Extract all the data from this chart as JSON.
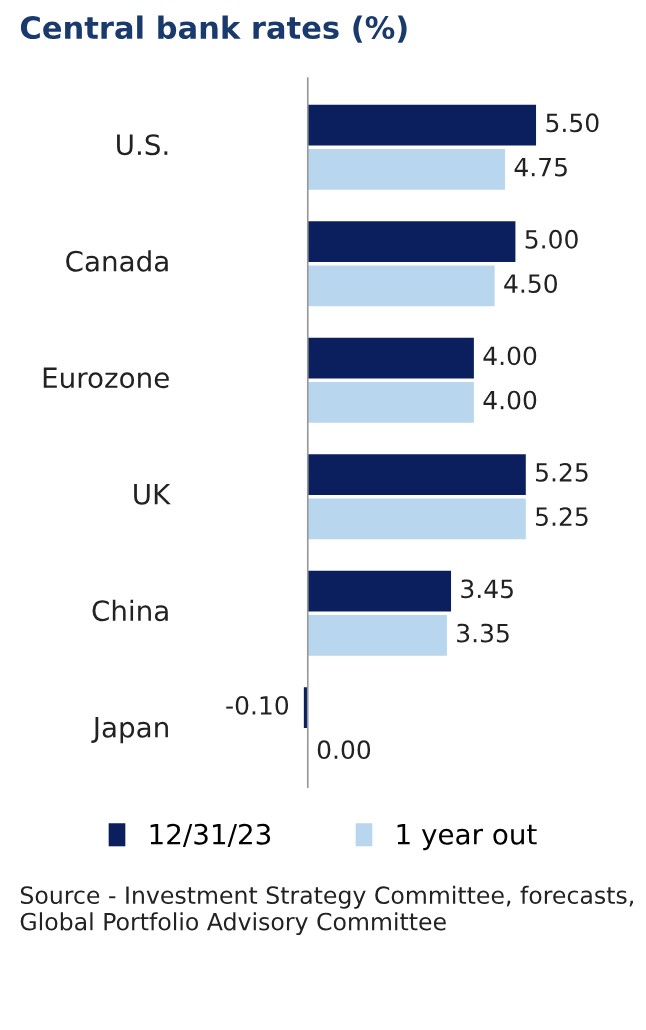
{
  "chart_data": {
    "type": "bar",
    "orientation": "horizontal",
    "title": "Central bank rates (%)",
    "categories": [
      "U.S.",
      "Canada",
      "Eurozone",
      "UK",
      "China",
      "Japan"
    ],
    "series": [
      {
        "name": "12/31/23",
        "color": "#0b1f5e",
        "values": [
          5.5,
          5.0,
          4.0,
          5.25,
          3.45,
          -0.1
        ],
        "value_labels": [
          "5.50",
          "5.00",
          "4.00",
          "5.25",
          "3.45",
          "-0.10"
        ]
      },
      {
        "name": "1 year out",
        "color": "#b8d6ee",
        "values": [
          4.75,
          4.5,
          4.0,
          5.25,
          3.35,
          0.0
        ],
        "value_labels": [
          "4.75",
          "4.50",
          "4.00",
          "5.25",
          "3.35",
          "0.00"
        ]
      }
    ],
    "tick_labels": "y",
    "legend": "bottom",
    "annotations": [
      "Source - Investment Strategy Committee, forecasts, Global Portfolio Advisory Committee"
    ]
  }
}
